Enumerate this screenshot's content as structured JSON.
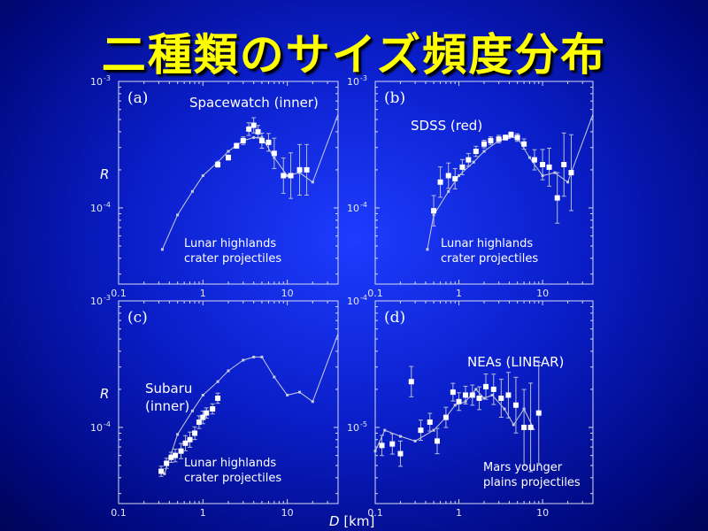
{
  "slide": {
    "title": "二種類のサイズ頻度分布"
  },
  "axes": {
    "xlabel_var": "D",
    "xlabel_unit": " [km]",
    "ylabel": "R"
  },
  "chart_data": [
    {
      "type": "scatter",
      "letter": "(a)",
      "xlog": true,
      "ylog": true,
      "xlim": [
        0.1,
        40
      ],
      "ylim": [
        2.5e-05,
        0.001
      ],
      "xticks": [
        "0.1",
        "1",
        "10"
      ],
      "yticks": [
        {
          "base": "10",
          "exp": "-3",
          "at": 0.001
        },
        {
          "base": "10",
          "exp": "-4",
          "at": 0.0001
        }
      ],
      "annotations": [
        {
          "text": "Spacewatch (inner)",
          "pos": "top"
        },
        {
          "text": "Lunar highlands",
          "pos": "bl1"
        },
        {
          "text": "crater projectiles",
          "pos": "bl2"
        }
      ],
      "model": {
        "name": "Lunar highlands crater projectiles",
        "x": [
          0.33,
          0.5,
          0.75,
          1.0,
          1.5,
          2.0,
          3.0,
          4.0,
          5.0,
          7.0,
          10.0,
          14.0,
          20.0,
          40.0
        ],
        "y": [
          4.7e-05,
          8.8e-05,
          0.000135,
          0.00018,
          0.00023,
          0.00028,
          0.00034,
          0.00036,
          0.00036,
          0.00025,
          0.00018,
          0.00019,
          0.00016,
          0.00055
        ]
      },
      "series": [
        {
          "x": [
            1.5,
            2.0,
            2.5,
            3.0,
            3.5,
            4.0,
            4.5,
            5.0,
            6.0,
            7.0,
            9.0,
            11.0,
            14.0,
            17.0
          ],
          "y": [
            0.00022,
            0.00025,
            0.00031,
            0.00034,
            0.00042,
            0.00045,
            0.0004,
            0.00034,
            0.00033,
            0.00027,
            0.00018,
            0.00018,
            0.0002,
            0.0002
          ],
          "err": [
            0.02,
            0.02,
            0.02,
            0.03,
            0.05,
            0.06,
            0.05,
            0.06,
            0.07,
            0.12,
            0.14,
            0.18,
            0.2,
            0.2
          ]
        }
      ]
    },
    {
      "type": "scatter",
      "letter": "(b)",
      "xlog": true,
      "ylog": true,
      "xlim": [
        0.1,
        40
      ],
      "ylim": [
        2.5e-05,
        0.001
      ],
      "xticks": [
        "0.1",
        "1",
        "10"
      ],
      "yticks": [
        {
          "base": "10",
          "exp": "-3",
          "at": 0.001
        },
        {
          "base": "10",
          "exp": "-4",
          "at": 0.0001
        }
      ],
      "annotations": [
        {
          "text": "SDSS (red)",
          "pos": "top-left"
        },
        {
          "text": "Lunar highlands",
          "pos": "bl1"
        },
        {
          "text": "crater projectiles",
          "pos": "bl2"
        }
      ],
      "model": {
        "name": "Lunar highlands crater projectiles",
        "x": [
          0.42,
          0.5,
          0.75,
          1.0,
          1.5,
          2.0,
          3.0,
          4.0,
          5.0,
          7.0,
          10.0,
          14.0,
          20.0,
          40.0
        ],
        "y": [
          4.7e-05,
          8.8e-05,
          0.000135,
          0.00018,
          0.00023,
          0.00028,
          0.00034,
          0.00036,
          0.00036,
          0.00025,
          0.00018,
          0.00019,
          0.00016,
          0.00055
        ]
      },
      "series": [
        {
          "x": [
            0.5,
            0.6,
            0.75,
            0.9,
            1.1,
            1.3,
            1.6,
            2.0,
            2.4,
            3.0,
            3.6,
            4.2,
            5.0,
            6.0,
            8.0,
            10.0,
            12.0,
            15.0,
            18.0,
            22.0
          ],
          "y": [
            9.5e-05,
            0.00016,
            0.00018,
            0.00017,
            0.00021,
            0.00024,
            0.00028,
            0.00032,
            0.00034,
            0.00035,
            0.00036,
            0.00038,
            0.00036,
            0.00032,
            0.00024,
            0.00022,
            0.00021,
            0.00012,
            0.00022,
            0.00019
          ],
          "err": [
            0.12,
            0.12,
            0.1,
            0.08,
            0.06,
            0.05,
            0.04,
            0.03,
            0.03,
            0.03,
            0.02,
            0.02,
            0.03,
            0.04,
            0.08,
            0.12,
            0.15,
            0.2,
            0.25,
            0.3
          ]
        }
      ]
    },
    {
      "type": "scatter",
      "letter": "(c)",
      "xlog": true,
      "ylog": true,
      "xlim": [
        0.1,
        40
      ],
      "ylim": [
        2.5e-05,
        0.001
      ],
      "xticks": [
        "0.1",
        "1",
        "10"
      ],
      "yticks": [
        {
          "base": "10",
          "exp": "-3",
          "at": 0.001
        },
        {
          "base": "10",
          "exp": "-4",
          "at": 0.0001
        }
      ],
      "annotations": [
        {
          "text": "Subaru",
          "pos": "ml1"
        },
        {
          "text": "(inner)",
          "pos": "ml2"
        },
        {
          "text": "Lunar highlands",
          "pos": "bl1"
        },
        {
          "text": "crater projectiles",
          "pos": "bl2"
        }
      ],
      "model": {
        "name": "Lunar highlands crater projectiles",
        "x": [
          0.35,
          0.5,
          0.75,
          1.0,
          1.5,
          2.0,
          3.0,
          4.0,
          5.0,
          7.0,
          10.0,
          14.0,
          20.0,
          40.0
        ],
        "y": [
          4.3e-05,
          8.8e-05,
          0.000135,
          0.00018,
          0.00023,
          0.00028,
          0.00034,
          0.00036,
          0.00036,
          0.00025,
          0.00018,
          0.00019,
          0.00016,
          0.00055
        ]
      },
      "series": [
        {
          "x": [
            0.32,
            0.37,
            0.42,
            0.47,
            0.55,
            0.62,
            0.7,
            0.8,
            0.9,
            1.0,
            1.1,
            1.3,
            1.5
          ],
          "y": [
            4.5e-05,
            5.2e-05,
            5.8e-05,
            6e-05,
            6.5e-05,
            7.5e-05,
            8e-05,
            9e-05,
            0.00011,
            0.00012,
            0.00013,
            0.00014,
            0.00017
          ],
          "err": [
            0.04,
            0.04,
            0.04,
            0.05,
            0.06,
            0.06,
            0.06,
            0.05,
            0.05,
            0.05,
            0.04,
            0.04,
            0.04
          ]
        }
      ]
    },
    {
      "type": "scatter",
      "letter": "(d)",
      "xlog": true,
      "ylog": true,
      "xlim": [
        0.1,
        40
      ],
      "ylim": [
        2.5e-06,
        0.0001
      ],
      "xticks": [
        "0.1",
        "1",
        "10"
      ],
      "yticks": [
        {
          "base": "10",
          "exp": "-4",
          "at": 0.0001
        },
        {
          "base": "10",
          "exp": "-5",
          "at": 1e-05
        }
      ],
      "annotations": [
        {
          "text": "NEAs (LINEAR)",
          "pos": "top-right"
        },
        {
          "text": "Mars  younger",
          "pos": "br1"
        },
        {
          "text": "plains projectiles",
          "pos": "br2"
        }
      ],
      "model": {
        "name": "Mars younger plains projectiles",
        "x": [
          0.1,
          0.13,
          0.2,
          0.3,
          0.5,
          0.7,
          0.9,
          1.2,
          1.6,
          2.0,
          2.5,
          3.5,
          4.5,
          6.0,
          8.0
        ],
        "y": [
          6.5e-06,
          9.5e-06,
          8.5e-06,
          7.8e-06,
          9.5e-06,
          1.2e-05,
          1.5e-05,
          1.6e-05,
          2e-05,
          1.7e-05,
          1.8e-05,
          1.4e-05,
          1.05e-05,
          1.4e-05,
          9.5e-06
        ]
      },
      "series": [
        {
          "x": [
            0.12,
            0.16,
            0.2,
            0.27,
            0.35,
            0.45,
            0.55,
            0.7,
            0.85,
            1.0,
            1.2,
            1.45,
            1.75,
            2.1,
            2.6,
            3.2,
            3.9,
            4.8,
            6.0,
            7.2,
            9.0
          ],
          "y": [
            7.2e-06,
            7.4e-06,
            6.2e-06,
            2.3e-05,
            9.5e-06,
            1.1e-05,
            7.8e-06,
            1.2e-05,
            1.9e-05,
            1.6e-05,
            1.8e-05,
            1.8e-05,
            1.7e-05,
            2.1e-05,
            2e-05,
            1.7e-05,
            1.8e-05,
            1.5e-05,
            1e-05,
            1e-05,
            1.3e-05
          ],
          "err": [
            0.08,
            0.08,
            0.1,
            0.12,
            0.08,
            0.07,
            0.1,
            0.08,
            0.07,
            0.07,
            0.07,
            0.08,
            0.09,
            0.1,
            0.12,
            0.15,
            0.18,
            0.22,
            0.3,
            0.35,
            0.4
          ]
        }
      ]
    }
  ]
}
